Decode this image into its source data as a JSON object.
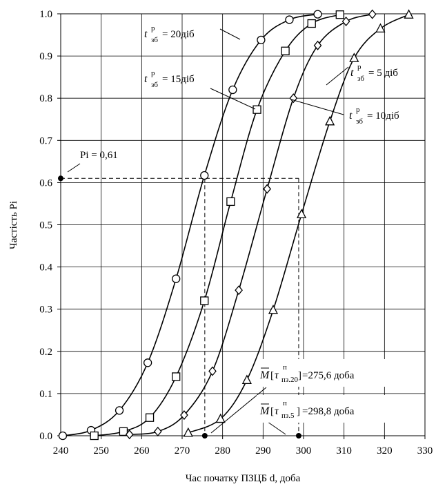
{
  "chart_data": {
    "type": "line",
    "xlabel": "Час початку ПЗЦБ d, доба",
    "ylabel": "Частість Pi",
    "xlim": [
      240,
      330
    ],
    "ylim": [
      0.0,
      1.0
    ],
    "x_ticks": [
      "240",
      "250",
      "260",
      "270",
      "280",
      "290",
      "300",
      "310",
      "320",
      "330"
    ],
    "y_ticks": [
      "0.0",
      "0.1",
      "0.2",
      "0.3",
      "0.4",
      "0.5",
      "0.6",
      "0.7",
      "0.8",
      "0.9",
      "1.0"
    ],
    "grid": true,
    "series": [
      {
        "name": "t зб р = 20діб",
        "marker": "circle",
        "points": [
          [
            240.5,
            0.0
          ],
          [
            247.5,
            0.013
          ],
          [
            254.5,
            0.06
          ],
          [
            261.5,
            0.173
          ],
          [
            268.5,
            0.372
          ],
          [
            275.5,
            0.617
          ],
          [
            282.5,
            0.82
          ],
          [
            289.5,
            0.938
          ],
          [
            296.5,
            0.986
          ],
          [
            303.5,
            0.999
          ]
        ]
      },
      {
        "name": "t зб р = 15діб",
        "marker": "square",
        "points": [
          [
            248.3,
            0.0
          ],
          [
            255.5,
            0.01
          ],
          [
            262,
            0.043
          ],
          [
            268.5,
            0.14
          ],
          [
            275.5,
            0.32
          ],
          [
            282,
            0.555
          ],
          [
            288.5,
            0.773
          ],
          [
            295.5,
            0.912
          ],
          [
            302,
            0.977
          ],
          [
            309,
            0.998
          ]
        ]
      },
      {
        "name": "t зб р = 10діб",
        "marker": "diamond",
        "points": [
          [
            257,
            0.003
          ],
          [
            264,
            0.01
          ],
          [
            270.5,
            0.049
          ],
          [
            277.5,
            0.153
          ],
          [
            284,
            0.345
          ],
          [
            291,
            0.585
          ],
          [
            297.5,
            0.8
          ],
          [
            303.5,
            0.925
          ],
          [
            310.5,
            0.982
          ],
          [
            317,
            0.999
          ]
        ]
      },
      {
        "name": "t зб р = 5 діб",
        "marker": "triangle",
        "points": [
          [
            271.5,
            0.007
          ],
          [
            279.5,
            0.04
          ],
          [
            286,
            0.132
          ],
          [
            292.5,
            0.298
          ],
          [
            299.5,
            0.525
          ],
          [
            306.5,
            0.745
          ],
          [
            312.5,
            0.895
          ],
          [
            319,
            0.965
          ],
          [
            326,
            0.998
          ]
        ]
      }
    ],
    "reference": {
      "pi_value": 0.61,
      "x_left": 275.6,
      "x_right": 298.8
    },
    "annotations": {
      "pi": "Pi = 0,61",
      "l20": "= 20діб",
      "l15": "= 15діб",
      "l10": "= 10діб",
      "l5": "= 5 діб",
      "t": "t",
      "sup": "р",
      "sub": "зб",
      "m20_value": "=275,6 доба",
      "m5_value": "=298,8 доба",
      "m_letter": "M",
      "tau": "τ",
      "tau_sup": "п",
      "tau_sub20": "пз.20",
      "tau_sub5": "пз.5"
    }
  }
}
